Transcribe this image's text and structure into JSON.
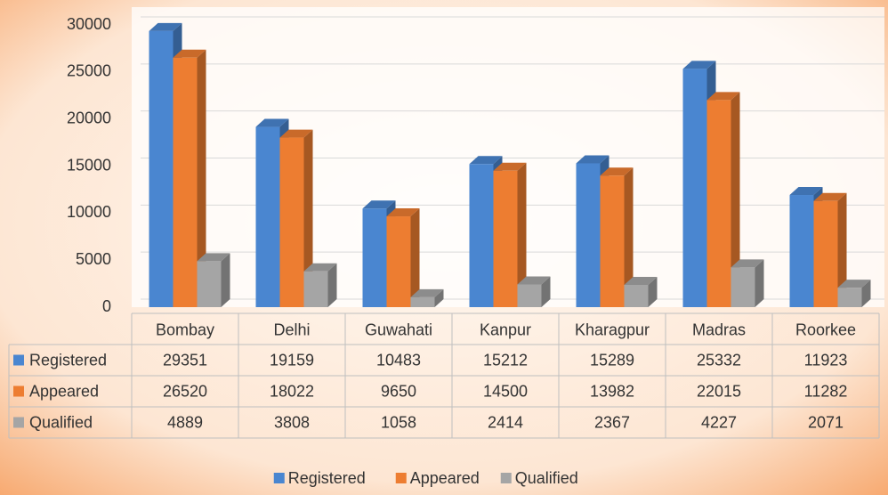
{
  "chart_data": {
    "type": "bar3d",
    "categories": [
      "Bombay",
      "Delhi",
      "Guwahati",
      "Kanpur",
      "Kharagpur",
      "Madras",
      "Roorkee"
    ],
    "series": [
      {
        "name": "Registered",
        "color": "#4a86d0",
        "values": [
          29351,
          19159,
          10483,
          15212,
          15289,
          25332,
          11923
        ]
      },
      {
        "name": "Appeared",
        "color": "#ed7d31",
        "values": [
          26520,
          18022,
          9650,
          14500,
          13982,
          22015,
          11282
        ]
      },
      {
        "name": "Qualified",
        "color": "#a5a5a5",
        "values": [
          4889,
          3808,
          1058,
          2414,
          2367,
          4227,
          2071
        ]
      }
    ],
    "ylim": [
      0,
      30000
    ],
    "yticks": [
      0,
      5000,
      10000,
      15000,
      20000,
      25000,
      30000
    ],
    "grid": true,
    "data_table": true,
    "legend": "bottom"
  }
}
